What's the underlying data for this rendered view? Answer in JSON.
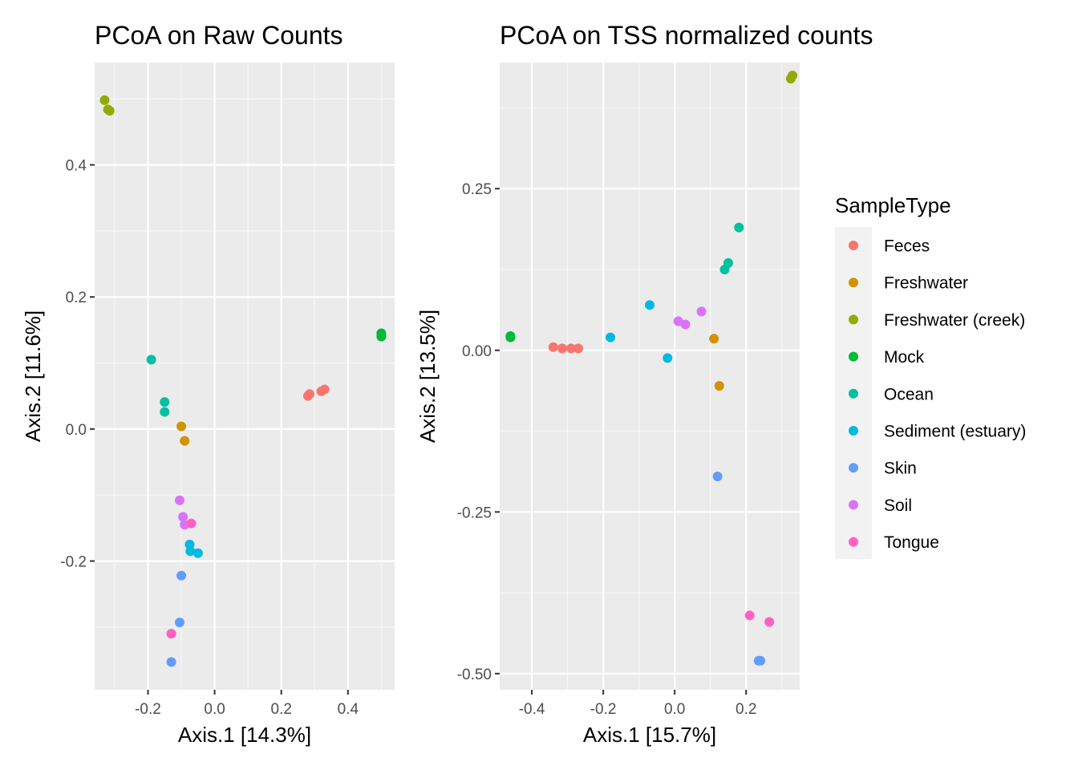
{
  "chart_data": [
    {
      "type": "scatter",
      "title": "PCoA on Raw Counts",
      "xlabel": "Axis.1   [14.3%]",
      "ylabel": "Axis.2   [11.6%]",
      "xlim": [
        -0.36,
        0.54
      ],
      "ylim": [
        -0.395,
        0.555
      ],
      "xticks": [
        -0.2,
        0.0,
        0.2,
        0.4
      ],
      "xtick_labels": [
        "-0.2",
        "0.0",
        "0.2",
        "0.4"
      ],
      "yticks": [
        -0.2,
        0.0,
        0.2,
        0.4
      ],
      "ytick_labels": [
        "-0.2",
        "0.0",
        "0.2",
        "0.4"
      ],
      "grid": true,
      "series": [
        {
          "name": "Feces",
          "points": [
            [
              0.28,
              0.05
            ],
            [
              0.285,
              0.053
            ],
            [
              0.32,
              0.057
            ],
            [
              0.33,
              0.06
            ]
          ]
        },
        {
          "name": "Freshwater",
          "points": [
            [
              -0.1,
              0.004
            ],
            [
              -0.09,
              -0.018
            ]
          ]
        },
        {
          "name": "Freshwater (creek)",
          "points": [
            [
              -0.33,
              0.498
            ],
            [
              -0.315,
              0.482
            ],
            [
              -0.32,
              0.484
            ]
          ]
        },
        {
          "name": "Mock",
          "points": [
            [
              0.5,
              0.14
            ],
            [
              0.5,
              0.145
            ]
          ]
        },
        {
          "name": "Ocean",
          "points": [
            [
              -0.19,
              0.105
            ],
            [
              -0.15,
              0.041
            ],
            [
              -0.15,
              0.026
            ]
          ]
        },
        {
          "name": "Sediment (estuary)",
          "points": [
            [
              -0.075,
              -0.175
            ],
            [
              -0.073,
              -0.185
            ],
            [
              -0.05,
              -0.188
            ]
          ]
        },
        {
          "name": "Skin",
          "points": [
            [
              -0.1,
              -0.222
            ],
            [
              -0.105,
              -0.293
            ],
            [
              -0.13,
              -0.353
            ]
          ]
        },
        {
          "name": "Soil",
          "points": [
            [
              -0.105,
              -0.108
            ],
            [
              -0.095,
              -0.133
            ],
            [
              -0.09,
              -0.145
            ]
          ]
        },
        {
          "name": "Tongue",
          "points": [
            [
              -0.07,
              -0.143
            ],
            [
              -0.13,
              -0.31
            ]
          ]
        }
      ]
    },
    {
      "type": "scatter",
      "title": "PCoA on TSS normalized counts",
      "xlabel": "Axis.1   [15.7%]",
      "ylabel": "Axis.2   [13.5%]",
      "xlim": [
        -0.49,
        0.35
      ],
      "ylim": [
        -0.525,
        0.445
      ],
      "xticks": [
        -0.4,
        -0.2,
        0.0,
        0.2
      ],
      "xtick_labels": [
        "-0.4",
        "-0.2",
        "0.0",
        "0.2"
      ],
      "yticks": [
        -0.5,
        -0.25,
        0.0,
        0.25
      ],
      "ytick_labels": [
        "-0.50",
        "-0.25",
        "0.00",
        "0.25"
      ],
      "grid": true,
      "series": [
        {
          "name": "Feces",
          "points": [
            [
              -0.34,
              0.005
            ],
            [
              -0.315,
              0.003
            ],
            [
              -0.29,
              0.003
            ],
            [
              -0.27,
              0.003
            ]
          ]
        },
        {
          "name": "Freshwater",
          "points": [
            [
              0.11,
              0.018
            ],
            [
              0.125,
              -0.055
            ]
          ]
        },
        {
          "name": "Freshwater (creek)",
          "points": [
            [
              0.325,
              0.42
            ],
            [
              0.33,
              0.425
            ]
          ]
        },
        {
          "name": "Mock",
          "points": [
            [
              -0.46,
              0.02
            ],
            [
              -0.46,
              0.022
            ]
          ]
        },
        {
          "name": "Ocean",
          "points": [
            [
              0.18,
              0.19
            ],
            [
              0.15,
              0.135
            ],
            [
              0.14,
              0.125
            ]
          ]
        },
        {
          "name": "Sediment (estuary)",
          "points": [
            [
              -0.07,
              0.07
            ],
            [
              -0.18,
              0.02
            ],
            [
              -0.02,
              -0.012
            ]
          ]
        },
        {
          "name": "Skin",
          "points": [
            [
              0.12,
              -0.195
            ],
            [
              0.235,
              -0.48
            ],
            [
              0.24,
              -0.48
            ]
          ]
        },
        {
          "name": "Soil",
          "points": [
            [
              0.01,
              0.045
            ],
            [
              0.03,
              0.04
            ],
            [
              0.075,
              0.06
            ]
          ]
        },
        {
          "name": "Tongue",
          "points": [
            [
              0.21,
              -0.41
            ],
            [
              0.265,
              -0.42
            ]
          ]
        }
      ]
    }
  ],
  "legend": {
    "title": "SampleType",
    "placement": "right",
    "items": [
      {
        "label": "Feces",
        "color": "#F8766D"
      },
      {
        "label": "Freshwater",
        "color": "#D39200"
      },
      {
        "label": "Freshwater (creek)",
        "color": "#93AA00"
      },
      {
        "label": "Mock",
        "color": "#00BA38"
      },
      {
        "label": "Ocean",
        "color": "#00C19F"
      },
      {
        "label": "Sediment (estuary)",
        "color": "#00B9E3"
      },
      {
        "label": "Skin",
        "color": "#619CFF"
      },
      {
        "label": "Soil",
        "color": "#DB72FB"
      },
      {
        "label": "Tongue",
        "color": "#FF61C3"
      }
    ]
  },
  "colors": {
    "panel_background": "#EBEBEB",
    "grid_major": "#FFFFFF",
    "legend_key_background": "#F2F2F2"
  }
}
